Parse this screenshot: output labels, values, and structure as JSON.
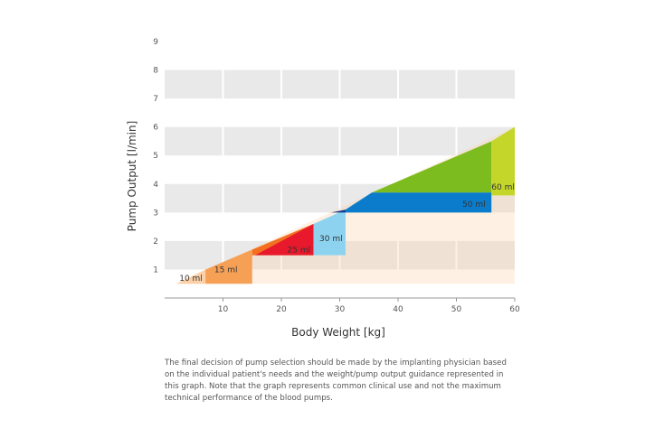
{
  "chart_data": {
    "type": "area",
    "xlabel": "Body Weight [kg]",
    "ylabel": "Pump Output [l/min]",
    "xlim": [
      0,
      60
    ],
    "ylim": [
      0,
      9
    ],
    "x_ticks": [
      "10",
      "20",
      "30",
      "40",
      "50",
      "60"
    ],
    "y_ticks": [
      "1",
      "2",
      "3",
      "4",
      "5",
      "6",
      "7",
      "8",
      "9"
    ],
    "grid": true,
    "colors": {
      "band": "#e9e9e9",
      "axis": "#999999",
      "envelope": "#fbd7ae"
    },
    "envelope": {
      "x": [
        2,
        60
      ],
      "y": [
        0.5,
        6
      ]
    },
    "series": [
      {
        "name": "10 ml",
        "color": "#fbd0a6",
        "label_color": "#666666",
        "x": [
          2,
          7,
          7
        ],
        "y": [
          0.5,
          0.5,
          1.0
        ],
        "label_x": 4.5,
        "label_y": 0.6
      },
      {
        "name": "15 ml",
        "color": "#f6a056",
        "label_color": "#555555",
        "x": [
          7,
          15,
          15,
          7
        ],
        "y": [
          0.5,
          0.5,
          1.7,
          1.0
        ],
        "label_x": 10.5,
        "label_y": 0.9
      },
      {
        "name": "",
        "color": "#f37021",
        "label_color": "#333333",
        "x": [
          15,
          25.5,
          25.5,
          15
        ],
        "y": [
          1.5,
          1.5,
          2.6,
          1.7
        ],
        "label_x": 20,
        "label_y": 1.6
      },
      {
        "name": "25 ml",
        "color": "#e8192c",
        "label_color": "#ff8a3a",
        "x": [
          15.5,
          25.5,
          25.5
        ],
        "y": [
          1.5,
          1.5,
          2.6
        ],
        "label_x": 23,
        "label_y": 1.6
      },
      {
        "name": "30 ml",
        "color": "#8dd3f0",
        "label_color": "#333333",
        "x": [
          25.5,
          31,
          31,
          25.5
        ],
        "y": [
          1.5,
          1.5,
          3.1,
          2.6
        ],
        "label_x": 28.5,
        "label_y": 2.0
      },
      {
        "name": "",
        "color": "#1a3c8c",
        "label_color": "#333333",
        "x": [
          28.5,
          31,
          31
        ],
        "y": [
          3.0,
          3.0,
          3.1
        ],
        "label_x": 30,
        "label_y": 3.0
      },
      {
        "name": "",
        "color": "#7dbc1e",
        "label_color": "#333333",
        "x": [
          35.5,
          56,
          56
        ],
        "y": [
          3.7,
          3.7,
          5.5
        ],
        "label_x": 46,
        "label_y": 4.3
      },
      {
        "name": "50 ml",
        "color": "#0a7ccb",
        "label_color": "#0c4e8a",
        "x": [
          31,
          56,
          56,
          35.5,
          31
        ],
        "y": [
          3.0,
          3.0,
          3.7,
          3.7,
          3.1
        ],
        "label_x": 53,
        "label_y": 3.2
      },
      {
        "name": "60 ml",
        "color": "#c4d62a",
        "label_color": "#555555",
        "x": [
          56,
          60,
          60,
          56
        ],
        "y": [
          3.6,
          3.6,
          6.0,
          5.5
        ],
        "label_x": 58,
        "label_y": 3.8
      }
    ]
  },
  "caption": "The final decision of pump selection should be made by the implanting physician based on the individual patient's needs and the weight/pump output guidance represented in this graph. Note that the graph represents common clinical use and not the maximum technical performance of the blood pumps."
}
